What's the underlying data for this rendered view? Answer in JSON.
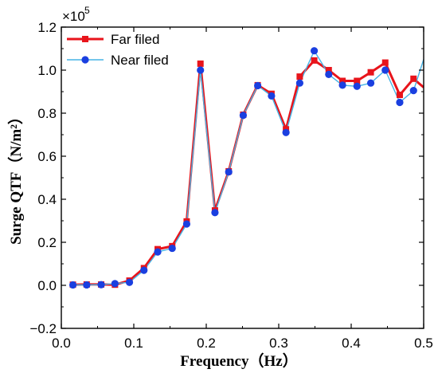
{
  "chart_data": {
    "type": "line",
    "xlabel": "Frequency（Hz）",
    "ylabel": "Surge QTF（N/m²）",
    "y_multiplier_label": "×10",
    "y_multiplier_exp": "5",
    "xlim": [
      0.0,
      0.5
    ],
    "ylim": [
      -0.2,
      1.2
    ],
    "x_ticks": [
      0.0,
      0.1,
      0.2,
      0.3,
      0.4,
      0.5
    ],
    "x_tick_labels": [
      "0.0",
      "0.1",
      "0.2",
      "0.3",
      "0.4",
      "0.5"
    ],
    "y_ticks": [
      -0.2,
      0.0,
      0.2,
      0.4,
      0.6,
      0.8,
      1.0,
      1.2
    ],
    "y_tick_labels": [
      "−0.2",
      "0.0",
      "0.2",
      "0.4",
      "0.6",
      "0.8",
      "1.0",
      "1.2"
    ],
    "grid": false,
    "legend_position": "top-left",
    "series": [
      {
        "name": "Far filed",
        "color": "#e8141b",
        "marker": "square",
        "x": [
          0.016,
          0.035,
          0.055,
          0.074,
          0.094,
          0.114,
          0.133,
          0.153,
          0.173,
          0.192,
          0.212,
          0.231,
          0.251,
          0.271,
          0.29,
          0.31,
          0.329,
          0.349,
          0.369,
          0.388,
          0.408,
          0.427,
          0.447,
          0.467,
          0.486,
          0.5
        ],
        "values": [
          0.003,
          0.004,
          0.004,
          0.003,
          0.022,
          0.08,
          0.168,
          0.182,
          0.297,
          1.03,
          0.348,
          0.53,
          0.793,
          0.93,
          0.89,
          0.725,
          0.97,
          1.045,
          1.0,
          0.95,
          0.95,
          0.99,
          1.035,
          0.885,
          0.96,
          0.92
        ]
      },
      {
        "name": "Near filed",
        "color": "#46b4e6",
        "marker": "circle",
        "x": [
          0.016,
          0.035,
          0.055,
          0.074,
          0.094,
          0.114,
          0.133,
          0.153,
          0.173,
          0.192,
          0.212,
          0.231,
          0.251,
          0.271,
          0.29,
          0.31,
          0.329,
          0.349,
          0.369,
          0.388,
          0.408,
          0.427,
          0.447,
          0.467,
          0.486,
          0.5
        ],
        "values": [
          0.002,
          0.002,
          0.003,
          0.008,
          0.014,
          0.07,
          0.155,
          0.172,
          0.285,
          1.0,
          0.338,
          0.527,
          0.79,
          0.928,
          0.88,
          0.71,
          0.94,
          1.09,
          0.98,
          0.93,
          0.925,
          0.94,
          1.0,
          0.85,
          0.905,
          1.05
        ]
      }
    ]
  }
}
